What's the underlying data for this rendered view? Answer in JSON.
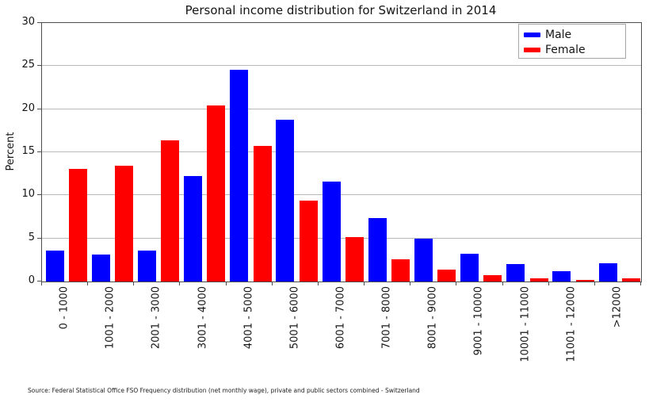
{
  "title": "Personal income distribution for Switzerland in 2014",
  "source_note": "Source: Federal Statistical Office FSO Frequency distribution (net monthly wage), private and public sectors combined - Switzerland",
  "colors": {
    "male": "#0000ff",
    "female": "#ff0000",
    "grid": "#b9b9b9",
    "frame": "#4d4d4d",
    "text": "#151515"
  },
  "chart_data": {
    "type": "bar",
    "title": "Personal income distribution for Switzerland in 2014",
    "xlabel": "",
    "ylabel": "Percent",
    "ylim": [
      0,
      30
    ],
    "yticks": [
      0,
      5,
      10,
      15,
      20,
      25,
      30
    ],
    "grid": true,
    "legend_position": "upper-right",
    "categories": [
      "0 - 1000",
      "1001 - 2000",
      "2001 - 3000",
      "3001 - 4000",
      "4001 - 5000",
      "5001 - 6000",
      "6001 - 7000",
      "7001 - 8000",
      "8001 - 9000",
      "9001 - 10000",
      "10001 - 11000",
      "11001 - 12000",
      ">12000"
    ],
    "series": [
      {
        "name": "Male",
        "color": "#0000ff",
        "values": [
          3.6,
          3.1,
          3.6,
          12.2,
          24.6,
          18.8,
          11.6,
          7.4,
          5.0,
          3.2,
          2.0,
          1.2,
          2.1
        ]
      },
      {
        "name": "Female",
        "color": "#ff0000",
        "values": [
          13.1,
          13.4,
          16.4,
          20.4,
          15.7,
          9.4,
          5.2,
          2.6,
          1.4,
          0.7,
          0.4,
          0.2,
          0.4
        ]
      }
    ]
  }
}
